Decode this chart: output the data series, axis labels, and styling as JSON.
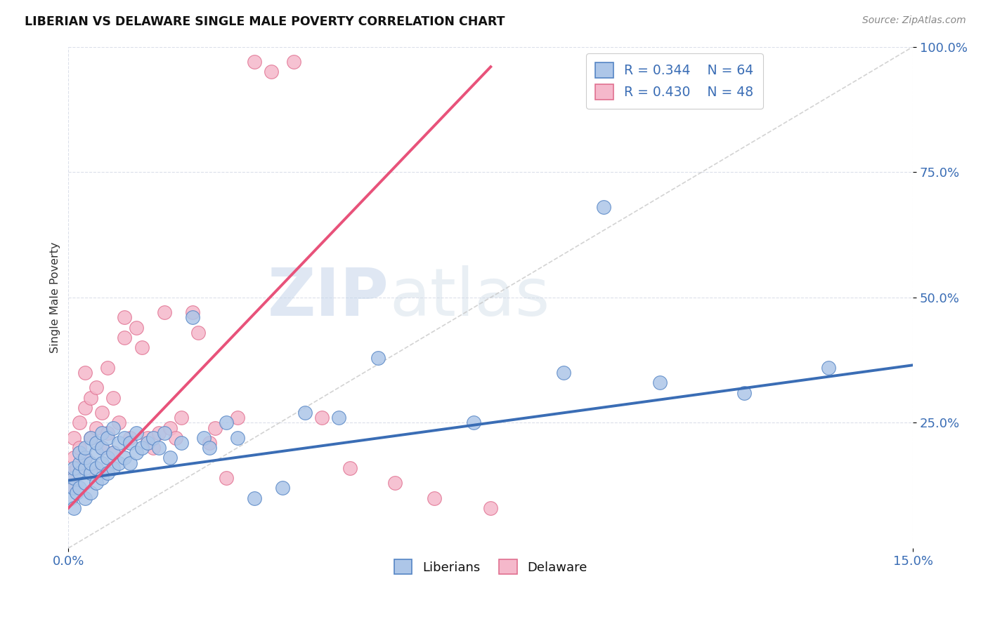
{
  "title": "LIBERIAN VS DELAWARE SINGLE MALE POVERTY CORRELATION CHART",
  "source": "Source: ZipAtlas.com",
  "ylabel": "Single Male Poverty",
  "xlim": [
    0.0,
    0.15
  ],
  "ylim": [
    0.0,
    1.0
  ],
  "xtick_labels": [
    "0.0%",
    "15.0%"
  ],
  "ytick_labels": [
    "25.0%",
    "50.0%",
    "75.0%",
    "100.0%"
  ],
  "ytick_positions": [
    0.25,
    0.5,
    0.75,
    1.0
  ],
  "legend_r1": "R = 0.344",
  "legend_n1": "N = 64",
  "legend_r2": "R = 0.430",
  "legend_n2": "N = 48",
  "color_liberian": "#adc6e8",
  "color_delaware": "#f5b8cb",
  "color_liberian_line": "#3a6db5",
  "color_delaware_line": "#e8527a",
  "color_diagonal": "#c8c8c8",
  "watermark_zip": "ZIP",
  "watermark_atlas": "atlas",
  "liberian_x": [
    0.0005,
    0.0008,
    0.001,
    0.001,
    0.001,
    0.0015,
    0.002,
    0.002,
    0.002,
    0.002,
    0.003,
    0.003,
    0.003,
    0.003,
    0.003,
    0.004,
    0.004,
    0.004,
    0.004,
    0.005,
    0.005,
    0.005,
    0.005,
    0.006,
    0.006,
    0.006,
    0.006,
    0.007,
    0.007,
    0.007,
    0.008,
    0.008,
    0.008,
    0.009,
    0.009,
    0.01,
    0.01,
    0.011,
    0.011,
    0.012,
    0.012,
    0.013,
    0.014,
    0.015,
    0.016,
    0.017,
    0.018,
    0.02,
    0.022,
    0.024,
    0.025,
    0.028,
    0.03,
    0.033,
    0.038,
    0.042,
    0.048,
    0.055,
    0.072,
    0.088,
    0.095,
    0.105,
    0.12,
    0.135
  ],
  "liberian_y": [
    0.1,
    0.12,
    0.08,
    0.14,
    0.16,
    0.11,
    0.12,
    0.15,
    0.17,
    0.19,
    0.1,
    0.13,
    0.16,
    0.18,
    0.2,
    0.11,
    0.15,
    0.17,
    0.22,
    0.13,
    0.16,
    0.19,
    0.21,
    0.14,
    0.17,
    0.2,
    0.23,
    0.15,
    0.18,
    0.22,
    0.16,
    0.19,
    0.24,
    0.17,
    0.21,
    0.18,
    0.22,
    0.17,
    0.21,
    0.19,
    0.23,
    0.2,
    0.21,
    0.22,
    0.2,
    0.23,
    0.18,
    0.21,
    0.46,
    0.22,
    0.2,
    0.25,
    0.22,
    0.1,
    0.12,
    0.27,
    0.26,
    0.38,
    0.25,
    0.35,
    0.68,
    0.33,
    0.31,
    0.36
  ],
  "delaware_x": [
    0.0005,
    0.001,
    0.001,
    0.001,
    0.0015,
    0.002,
    0.002,
    0.003,
    0.003,
    0.003,
    0.004,
    0.004,
    0.005,
    0.005,
    0.005,
    0.006,
    0.006,
    0.007,
    0.007,
    0.008,
    0.008,
    0.009,
    0.01,
    0.01,
    0.011,
    0.012,
    0.013,
    0.014,
    0.015,
    0.016,
    0.017,
    0.018,
    0.019,
    0.02,
    0.022,
    0.023,
    0.025,
    0.026,
    0.028,
    0.03,
    0.033,
    0.036,
    0.04,
    0.045,
    0.05,
    0.058,
    0.065,
    0.075
  ],
  "delaware_y": [
    0.15,
    0.12,
    0.18,
    0.22,
    0.16,
    0.2,
    0.25,
    0.18,
    0.28,
    0.35,
    0.22,
    0.3,
    0.15,
    0.24,
    0.32,
    0.2,
    0.27,
    0.23,
    0.36,
    0.19,
    0.3,
    0.25,
    0.42,
    0.46,
    0.22,
    0.44,
    0.4,
    0.22,
    0.2,
    0.23,
    0.47,
    0.24,
    0.22,
    0.26,
    0.47,
    0.43,
    0.21,
    0.24,
    0.14,
    0.26,
    0.97,
    0.95,
    0.97,
    0.26,
    0.16,
    0.13,
    0.1,
    0.08
  ],
  "liberian_line_x0": 0.0,
  "liberian_line_y0": 0.135,
  "liberian_line_x1": 0.15,
  "liberian_line_y1": 0.365,
  "delaware_line_x0": 0.0,
  "delaware_line_y0": 0.08,
  "delaware_line_x1": 0.075,
  "delaware_line_y1": 0.96
}
